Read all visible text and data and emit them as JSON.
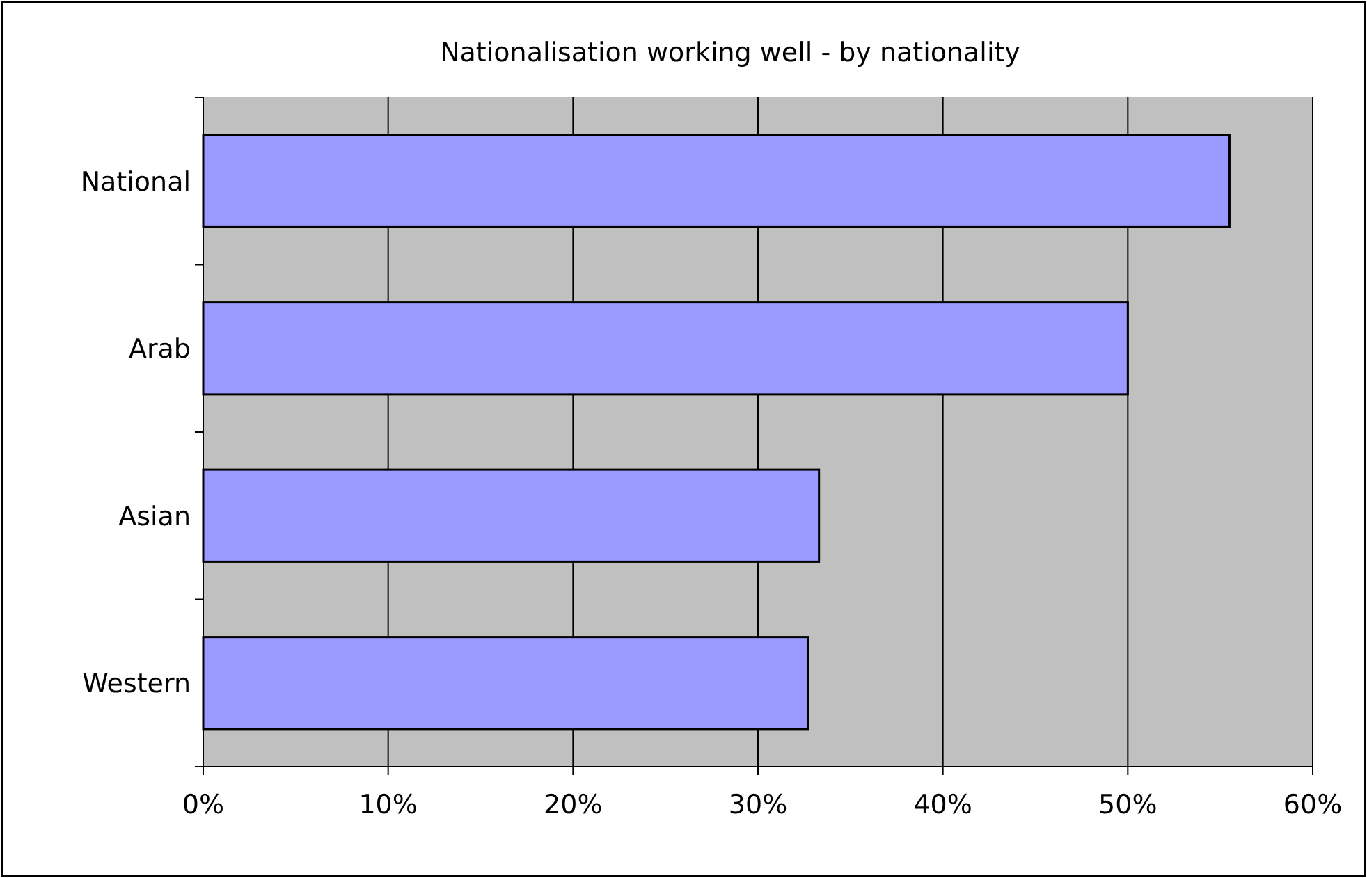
{
  "chart_data": {
    "type": "bar",
    "orientation": "horizontal",
    "title": "Nationalisation working well - by nationality",
    "categories": [
      "National",
      "Arab",
      "Asian",
      "Western"
    ],
    "values": [
      55.5,
      50,
      33.3,
      32.7
    ],
    "color": "#9999ff",
    "xlim": [
      0,
      60
    ],
    "xticks": [
      {
        "value": 0,
        "label": "0%"
      },
      {
        "value": 10,
        "label": "10%"
      },
      {
        "value": 20,
        "label": "20%"
      },
      {
        "value": 30,
        "label": "30%"
      },
      {
        "value": 40,
        "label": "40%"
      },
      {
        "value": 50,
        "label": "50%"
      },
      {
        "value": 60,
        "label": "60%"
      }
    ],
    "grid": "x"
  }
}
